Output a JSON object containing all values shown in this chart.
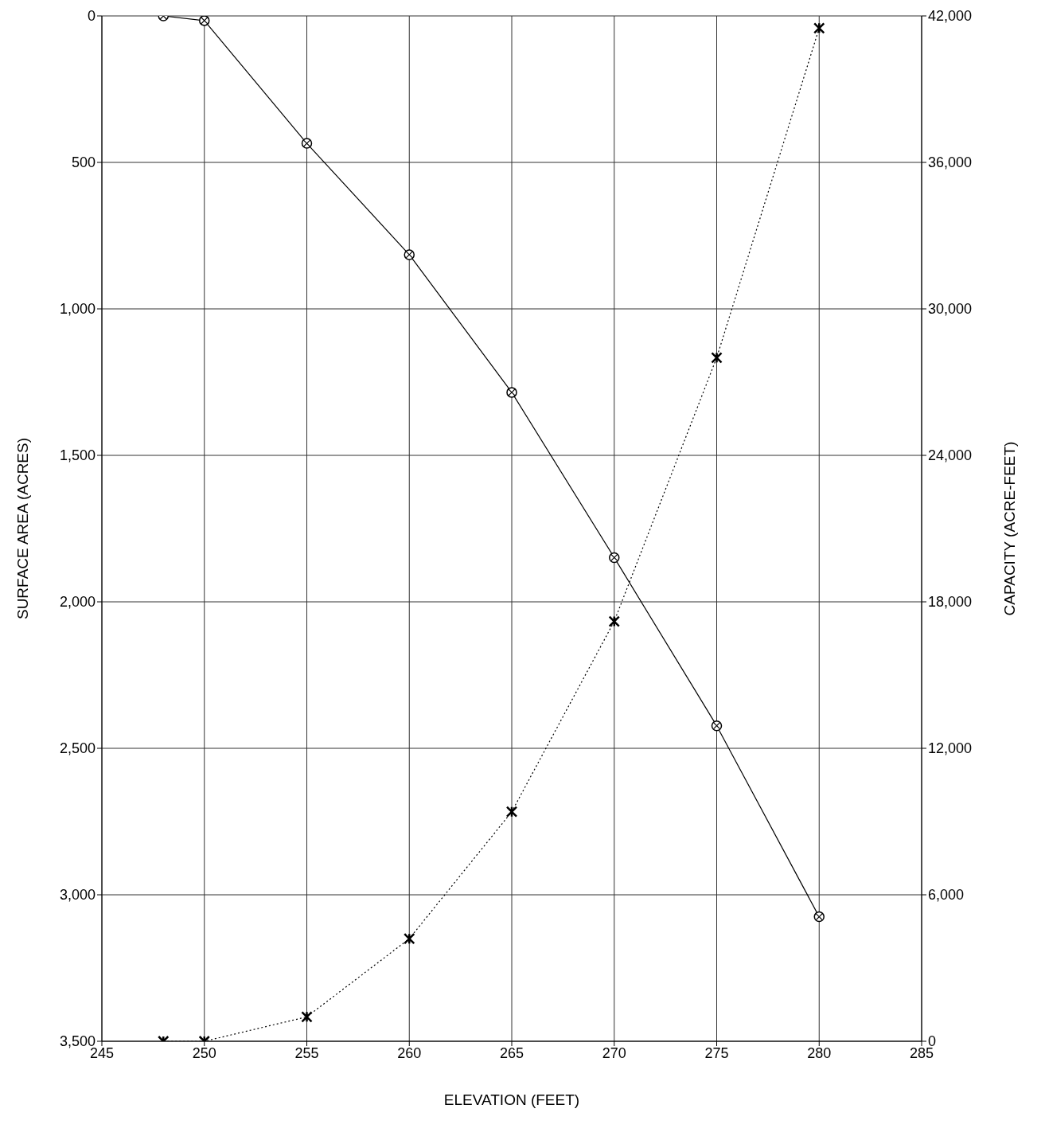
{
  "chart_data": {
    "type": "line",
    "xlabel": "ELEVATION (FEET)",
    "ylabel": "SURFACE AREA (ACRES)",
    "y2label": "CAPACITY (ACRE-FEET)",
    "x": [
      248,
      250,
      255,
      260,
      265,
      270,
      275,
      280
    ],
    "series": [
      {
        "color": "#000000",
        "values": [
          0,
          16,
          435,
          815,
          1285,
          1849,
          2423,
          3075
        ],
        "marker": "circle",
        "line_style": "solid"
      },
      {
        "color": "#000000",
        "values": [
          0,
          0,
          1000,
          4200,
          9400,
          17200,
          28000,
          41500
        ],
        "axis": "y2",
        "marker": "cross",
        "line_style": "dotted"
      }
    ],
    "xlim": [
      245,
      285
    ],
    "xticks": [
      245,
      250,
      255,
      260,
      265,
      270,
      275,
      280,
      285
    ],
    "ylim": [
      3500,
      0
    ],
    "yticks": [
      0,
      500,
      {
        "value": 1000,
        "label": "1,000"
      },
      {
        "value": 1500,
        "label": "1,500"
      },
      {
        "value": 2000,
        "label": "2,000"
      },
      {
        "value": 2500,
        "label": "2,500"
      },
      {
        "value": 3000,
        "label": "3,000"
      },
      {
        "value": 3500,
        "label": "3,500"
      }
    ],
    "y2lim": [
      0,
      42000
    ],
    "y2ticks": [
      0,
      {
        "value": 6000,
        "label": "6,000"
      },
      {
        "value": 12000,
        "label": "12,000"
      },
      {
        "value": 18000,
        "label": "18,000"
      },
      {
        "value": 24000,
        "label": "24,000"
      },
      {
        "value": 30000,
        "label": "30,000"
      },
      {
        "value": 36000,
        "label": "36,000"
      },
      {
        "value": 42000,
        "label": "42,000"
      }
    ],
    "grid": true,
    "legend": false
  }
}
